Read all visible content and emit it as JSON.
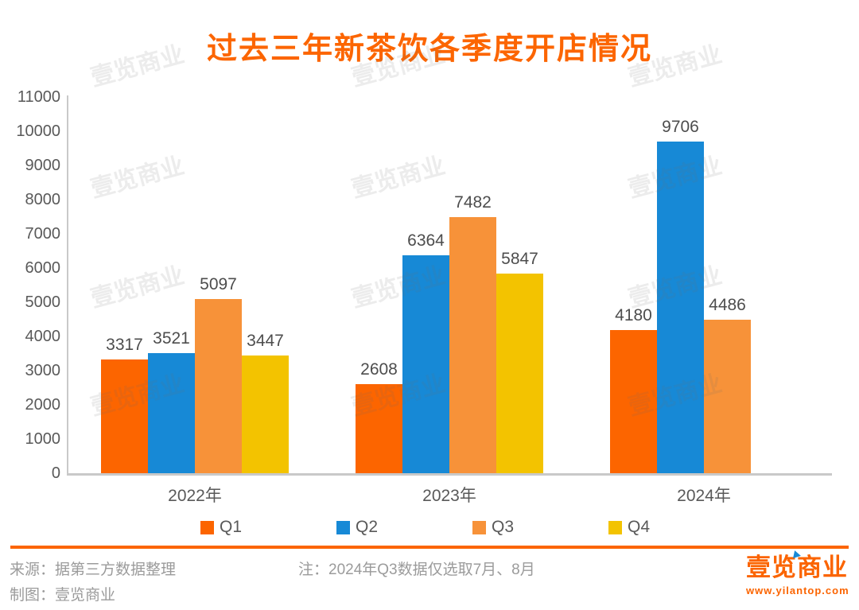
{
  "chart_data": {
    "type": "bar",
    "title": "过去三年新茶饮各季度开店情况",
    "categories": [
      "2022年",
      "2023年",
      "2024年"
    ],
    "series": [
      {
        "name": "Q1",
        "color": "#FC6500",
        "values": [
          3317,
          2608,
          4180
        ]
      },
      {
        "name": "Q2",
        "color": "#1789D6",
        "values": [
          3521,
          6364,
          9706
        ]
      },
      {
        "name": "Q3",
        "color": "#F79239",
        "values": [
          5097,
          7482,
          4486
        ]
      },
      {
        "name": "Q4",
        "color": "#F3C300",
        "values": [
          3447,
          5847,
          null
        ]
      }
    ],
    "xlabel": "",
    "ylabel": "",
    "ylim": [
      0,
      11000
    ],
    "ytick_step": 1000,
    "grid": false,
    "legend_position": "bottom",
    "value_labels": true
  },
  "footer": {
    "source_label": "来源：据第三方数据整理",
    "credit_label": "制图：壹览商业",
    "note": "注：2024年Q3数据仅选取7月、8月"
  },
  "logo": {
    "name": "壹览商业",
    "url": "www.yilantop.com"
  },
  "watermark": {
    "text": "壹览商业"
  },
  "colors": {
    "accent_orange": "#FC6500",
    "axis_text": "#595959",
    "value_text": "#4D4D4D",
    "footer_text": "#9B9B9B",
    "axis_line": "#C9C9C9",
    "logo_flag_blue": "#1789D6"
  }
}
